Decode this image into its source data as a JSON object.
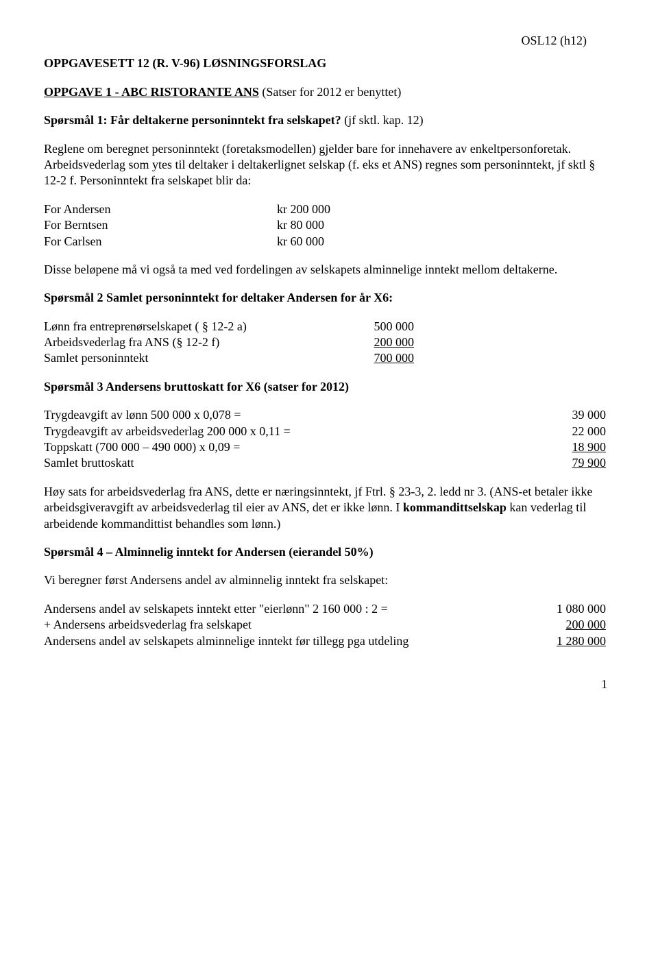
{
  "header": {
    "code": "OSL12    (h12)"
  },
  "title": "OPPGAVESETT 12 (R. V-96) LØSNINGSFORSLAG",
  "oppgave1": {
    "heading_bold": "OPPGAVE 1  -  ABC RISTORANTE ANS",
    "heading_rest": "  (Satser for 2012 er benyttet)",
    "sporsmal1_label": "Spørsmål 1:   Får deltakerne personinntekt fra selskapet?",
    "sporsmal1_ref": "  (jf sktl. kap. 12)",
    "para1": "Reglene om beregnet personinntekt (foretaksmodellen) gjelder bare for innehavere av enkeltpersonforetak. Arbeidsvederlag som ytes til deltaker i deltakerlignet selskap (f. eks et ANS) regnes som personinntekt, jf sktl § 12-2 f. Personinntekt fra selskapet blir da:",
    "personinntekt": [
      {
        "who": "For Andersen",
        "amount": "kr 200 000"
      },
      {
        "who": "For Berntsen",
        "amount": "kr   80 000"
      },
      {
        "who": "For Carlsen",
        "amount": "kr   60 000"
      }
    ],
    "para2": "Disse beløpene må vi også ta med ved fordelingen av selskapets alminnelige inntekt mellom deltakerne."
  },
  "sporsmal2": {
    "heading": "Spørsmål 2 Samlet personinntekt for deltaker Andersen for  år X6:",
    "rows": [
      {
        "label": "Lønn fra entreprenørselskapet ( § 12-2 a)",
        "val": "500 000",
        "under": false
      },
      {
        "label": "Arbeidsvederlag fra ANS (§ 12-2 f)",
        "val": "200 000",
        "under": true
      },
      {
        "label": "Samlet personinntekt",
        "val": "700 000",
        "under": true
      }
    ]
  },
  "sporsmal3": {
    "heading": "Spørsmål 3 Andersens bruttoskatt for X6 (satser for 2012)",
    "rows": [
      {
        "label": "Trygdeavgift av lønn  500 000 x 0,078 =",
        "val": "39 000",
        "under": false
      },
      {
        "label": "Trygdeavgift av arbeidsvederlag 200 000 x 0,11 =",
        "val": "22 000",
        "under": false
      },
      {
        "label": "Toppskatt  (700 000 – 490 000) x 0,09 =",
        "val": "18 900",
        "under": true
      },
      {
        "label": "Samlet bruttoskatt",
        "val": "79 900",
        "under": true
      }
    ],
    "note": "Høy sats for arbeidsvederlag fra ANS, dette er næringsinntekt, jf  Ftrl.  § 23-3, 2. ledd nr 3. (ANS-et betaler ikke arbeidsgiveravgift av arbeidsvederlag til eier av ANS, det er ikke lønn. I ",
    "note_bold": "kommandittselskap",
    "note_rest": " kan vederlag til arbeidende kommandittist behandles som lønn.)"
  },
  "sporsmal4": {
    "heading": "Spørsmål 4 – Alminnelig inntekt for Andersen (eierandel 50%)",
    "intro": "Vi beregner først Andersens andel av alminnelig inntekt fra selskapet:",
    "rows": [
      {
        "label": "Andersens andel av selskapets inntekt etter \"eierlønn\"  2 160 000 : 2 =",
        "val": "1 080 000",
        "under": false
      },
      {
        "label": "+ Andersens arbeidsvederlag fra selskapet",
        "val": "200 000",
        "under": true
      },
      {
        "label": "Andersens andel av selskapets alminnelige inntekt før tillegg pga utdeling",
        "val": "1 280 000",
        "under": true
      }
    ]
  },
  "page_number": "1"
}
